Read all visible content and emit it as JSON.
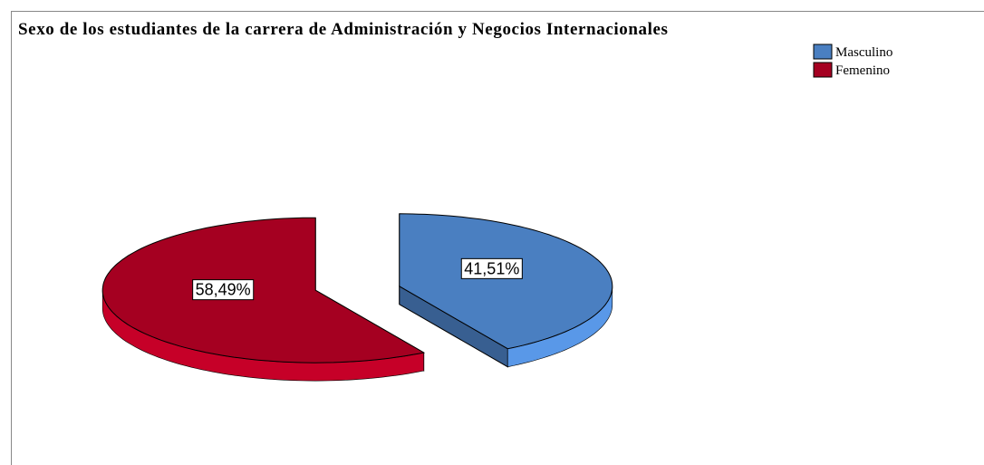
{
  "chart_data": {
    "type": "pie",
    "title": "Sexo de los estudiantes de la carrera de Administración y Negocios Internacionales",
    "categories": [
      "Masculino",
      "Femenino"
    ],
    "values": [
      41.51,
      58.49
    ],
    "value_labels": [
      "41,51%",
      "58,49%"
    ],
    "colors": [
      "#4a7fc1",
      "#a50021"
    ],
    "legend": "top-right"
  }
}
